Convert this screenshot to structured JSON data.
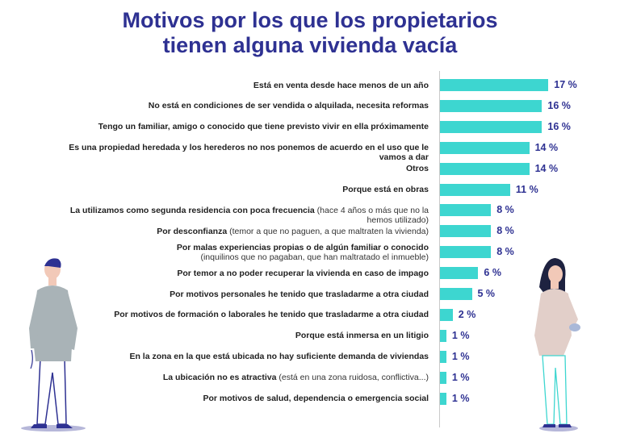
{
  "title_lines": [
    "Motivos por los que los propietarios",
    "tienen alguna vivienda vacía"
  ],
  "colors": {
    "bar": "#3dd6d0",
    "title": "#2e3192",
    "value": "#2e3192"
  },
  "chart_data": {
    "type": "bar",
    "orientation": "horizontal",
    "unit": "%",
    "categories": [
      "Está en venta desde hace menos de un año",
      "No está en condiciones de ser vendida o alquilada, necesita reformas",
      "Tengo un familiar, amigo o conocido que tiene previsto vivir en ella próximamente",
      "Es una propiedad heredada y los herederos no nos ponemos de acuerdo en el uso que le vamos a dar",
      "Otros",
      "Porque está en obras",
      "La utilizamos como segunda residencia con poca frecuencia",
      "Por desconfianza",
      "Por malas experiencias propias o de algún familiar o conocido",
      "Por temor a no poder recuperar la vivienda en caso de impago",
      "Por motivos personales he tenido que trasladarme a otra ciudad",
      "Por motivos de formación o laborales he tenido que trasladarme a otra ciudad",
      "Porque está inmersa en un litigio",
      "En la zona en la que está ubicada no hay suficiente demanda de viviendas",
      "La ubicación no es atractiva",
      "Por motivos de salud, dependencia o emergencia social"
    ],
    "sublabels": [
      "",
      "",
      "",
      "",
      "",
      "",
      "(hace 4 años o más que no la hemos utilizado)",
      "(temor a que no paguen, a que maltraten la vivienda)",
      "(inquilinos que no pagaban, que han maltratado el inmueble)",
      "",
      "",
      "",
      "",
      "",
      "(está en una zona ruidosa, conflictiva...)",
      ""
    ],
    "sublabel_newline": [
      false,
      false,
      false,
      false,
      false,
      false,
      false,
      false,
      true,
      false,
      false,
      false,
      false,
      false,
      false,
      false
    ],
    "values": [
      17,
      16,
      16,
      14,
      14,
      11,
      8,
      8,
      8,
      6,
      5,
      2,
      1,
      1,
      1,
      1
    ],
    "value_labels": [
      "17 %",
      "16 %",
      "16 %",
      "14 %",
      "14 %",
      "11 %",
      "8 %",
      "8 %",
      "8 %",
      "6 %",
      "5 %",
      "2 %",
      "1 %",
      "1 %",
      "1 %",
      "1 %"
    ]
  }
}
